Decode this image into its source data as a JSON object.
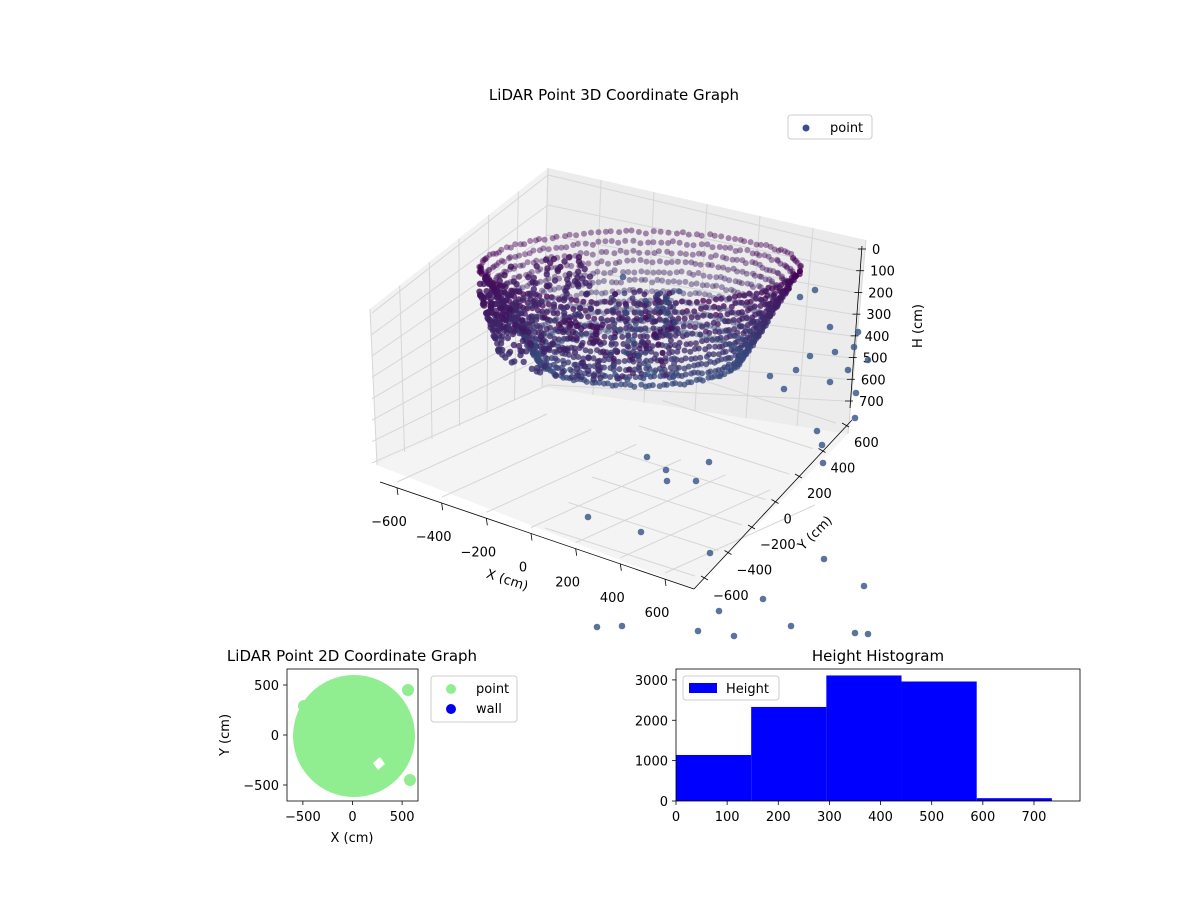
{
  "colors": {
    "point3d": "#3b4d8f",
    "point2d": "#90ee90",
    "wall": "#0000ee",
    "hist": "#0000ff",
    "pane": "#f2f2f2",
    "grid": "#d8d8d8"
  },
  "chart_data": [
    {
      "type": "scatter",
      "subtype": "3d",
      "title": "LiDAR Point 3D Coordinate Graph",
      "xlabel": "X (cm)",
      "ylabel": "Y (cm)",
      "zlabel": "H (cm)",
      "x_ticks": [
        "−600",
        "−400",
        "−200",
        "0",
        "200",
        "400",
        "600"
      ],
      "y_ticks": [
        "−600",
        "−400",
        "−200",
        "0",
        "200",
        "400",
        "600"
      ],
      "z_ticks": [
        "0",
        "100",
        "200",
        "300",
        "400",
        "500",
        "600",
        "700"
      ],
      "xlim": [
        -650,
        650
      ],
      "ylim": [
        -650,
        650
      ],
      "zlim": [
        0,
        750
      ],
      "z_inverted": true,
      "grid": true,
      "legend": {
        "position": "top-right",
        "entries": [
          "point"
        ]
      },
      "series": [
        {
          "name": "point",
          "description": "ring of points at radius ~600 cm forming a bowl from H 0 to ~500 cm, plus outlier points up to ~750 cm"
        }
      ]
    },
    {
      "type": "scatter",
      "title": "LiDAR Point 2D Coordinate Graph",
      "xlabel": "X (cm)",
      "ylabel": "Y (cm)",
      "x_ticks": [
        "−500",
        "0",
        "500"
      ],
      "y_ticks": [
        "500",
        "0",
        "−500"
      ],
      "xlim": [
        -660,
        660
      ],
      "ylim": [
        -660,
        660
      ],
      "legend": {
        "position": "outside-right",
        "entries": [
          "point",
          "wall"
        ]
      },
      "series": [
        {
          "name": "point",
          "description": "dense disc of radius ~600 cm"
        },
        {
          "name": "wall",
          "points": []
        }
      ]
    },
    {
      "type": "bar",
      "subtype": "histogram",
      "title": "Height Histogram",
      "legend": {
        "position": "top-left",
        "entries": [
          "Height"
        ]
      },
      "x_ticks": [
        "0",
        "100",
        "200",
        "300",
        "400",
        "500",
        "600",
        "700"
      ],
      "y_ticks": [
        "0",
        "1000",
        "2000",
        "3000"
      ],
      "xlim": [
        0,
        790
      ],
      "ylim": [
        0,
        3270
      ],
      "bins": [
        {
          "start": 0,
          "end": 147,
          "count": 1140
        },
        {
          "start": 147,
          "end": 294,
          "count": 2330
        },
        {
          "start": 294,
          "end": 441,
          "count": 3110
        },
        {
          "start": 441,
          "end": 588,
          "count": 2960
        },
        {
          "start": 588,
          "end": 735,
          "count": 70
        }
      ],
      "series": [
        {
          "name": "Height"
        }
      ]
    }
  ]
}
